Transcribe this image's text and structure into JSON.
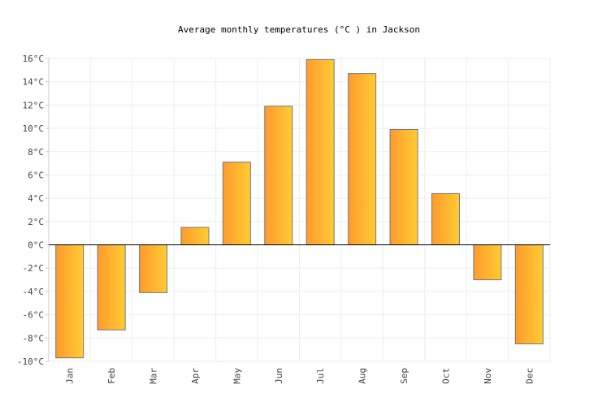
{
  "colors": {
    "bar_start": "#ff9a2e",
    "bar_end": "#ffcc33",
    "bar_stroke": "#777777",
    "grid": "#eeeeee",
    "zero_line": "#000000",
    "axis": "#cccccc"
  },
  "chart_data": {
    "type": "bar",
    "title": "Average monthly temperatures (°C ) in Jackson",
    "xlabel": "",
    "ylabel": "",
    "categories": [
      "Jan",
      "Feb",
      "Mar",
      "Apr",
      "May",
      "Jun",
      "Jul",
      "Aug",
      "Sep",
      "Oct",
      "Nov",
      "Dec"
    ],
    "values": [
      -9.7,
      -7.3,
      -4.1,
      1.5,
      7.1,
      11.9,
      15.9,
      14.7,
      9.9,
      4.4,
      -3.0,
      -8.5
    ],
    "ylim": [
      -10,
      16
    ],
    "yticks": [
      -10,
      -8,
      -6,
      -4,
      -2,
      0,
      2,
      4,
      6,
      8,
      10,
      12,
      14,
      16
    ],
    "ytick_labels": [
      "-10°C",
      "-8°C",
      "-6°C",
      "-4°C",
      "-2°C",
      "0°C",
      "2°C",
      "4°C",
      "6°C",
      "8°C",
      "10°C",
      "12°C",
      "14°C",
      "16°C"
    ],
    "grid": true,
    "legend": "none"
  }
}
